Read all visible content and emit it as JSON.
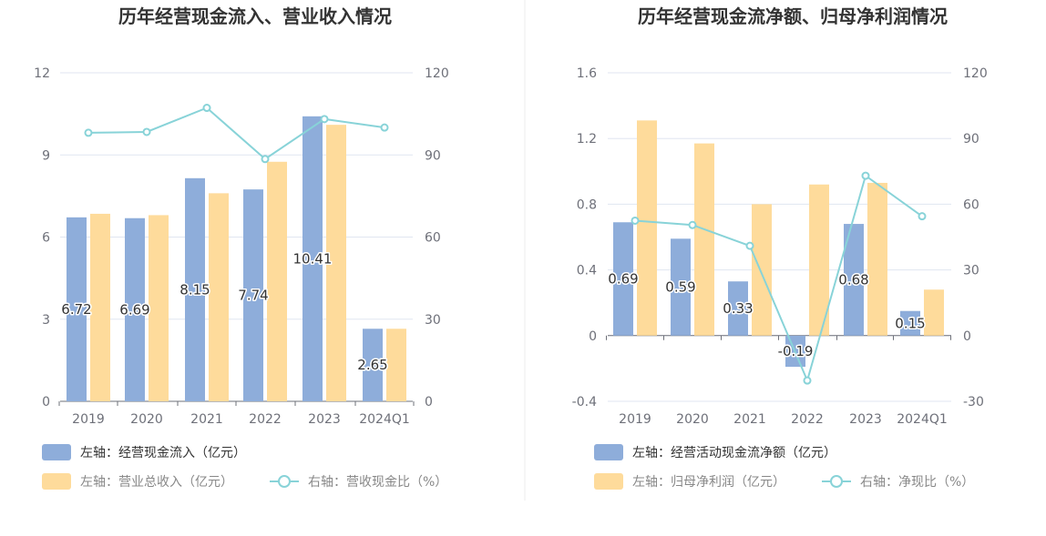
{
  "colors": {
    "inflow": "#8eadda",
    "revenue": "#fedb9b",
    "ratio": "#88d3d8",
    "grid": "#e0e6f1",
    "axis": "#6e7079",
    "text_dark": "#333333",
    "text_muted": "#888888"
  },
  "chart_data": [
    {
      "type": "bar",
      "title": "历年经营现金流入、营业收入情况",
      "categories": [
        "2019",
        "2020",
        "2021",
        "2022",
        "2023",
        "2024Q1"
      ],
      "left_axis": {
        "ylim": [
          0,
          12
        ],
        "ticks": [
          "12",
          "9",
          "6",
          "3",
          "0"
        ]
      },
      "right_axis": {
        "ylim": [
          0,
          120
        ],
        "ticks": [
          "120",
          "90",
          "60",
          "30",
          "0"
        ]
      },
      "series": [
        {
          "name": "左轴：经营现金流入（亿元）",
          "type": "bar",
          "axis": "left",
          "values": [
            6.72,
            6.69,
            8.15,
            7.74,
            10.41,
            2.65
          ],
          "labels": [
            "6.72",
            "6.69",
            "8.15",
            "7.74",
            "10.41",
            "2.65"
          ]
        },
        {
          "name": "左轴：营业总收入（亿元）",
          "type": "bar",
          "axis": "left",
          "values": [
            6.85,
            6.8,
            7.6,
            8.75,
            10.1,
            2.65
          ]
        },
        {
          "name": "右轴：营收现金比（%）",
          "type": "line",
          "axis": "right",
          "values": [
            98.1,
            98.4,
            107.2,
            88.5,
            103.1,
            100.0
          ]
        }
      ],
      "legend": "bottom-left",
      "grid": true
    },
    {
      "type": "bar",
      "title": "历年经营现金流净额、归母净利润情况",
      "categories": [
        "2019",
        "2020",
        "2021",
        "2022",
        "2023",
        "2024Q1"
      ],
      "left_axis": {
        "ylim": [
          -0.4,
          1.6
        ],
        "ticks": [
          "1.6",
          "1.2",
          "0.8",
          "0.4",
          "0",
          "-0.4"
        ]
      },
      "right_axis": {
        "ylim": [
          -30,
          120
        ],
        "ticks": [
          "120",
          "90",
          "60",
          "30",
          "0",
          "-30"
        ]
      },
      "series": [
        {
          "name": "左轴：经营活动现金流净额（亿元）",
          "type": "bar",
          "axis": "left",
          "values": [
            0.69,
            0.59,
            0.33,
            -0.19,
            0.68,
            0.15
          ],
          "labels": [
            "0.69",
            "0.59",
            "0.33",
            "-0.19",
            "0.68",
            "0.15"
          ]
        },
        {
          "name": "左轴：归母净利润（亿元）",
          "type": "bar",
          "axis": "left",
          "values": [
            1.31,
            1.17,
            0.8,
            0.92,
            0.93,
            0.28
          ]
        },
        {
          "name": "右轴：净现比（%）",
          "type": "line",
          "axis": "right",
          "values": [
            52.5,
            50.5,
            41.0,
            -20.5,
            73.0,
            54.5
          ]
        }
      ],
      "legend": "bottom-left",
      "grid": true
    }
  ]
}
